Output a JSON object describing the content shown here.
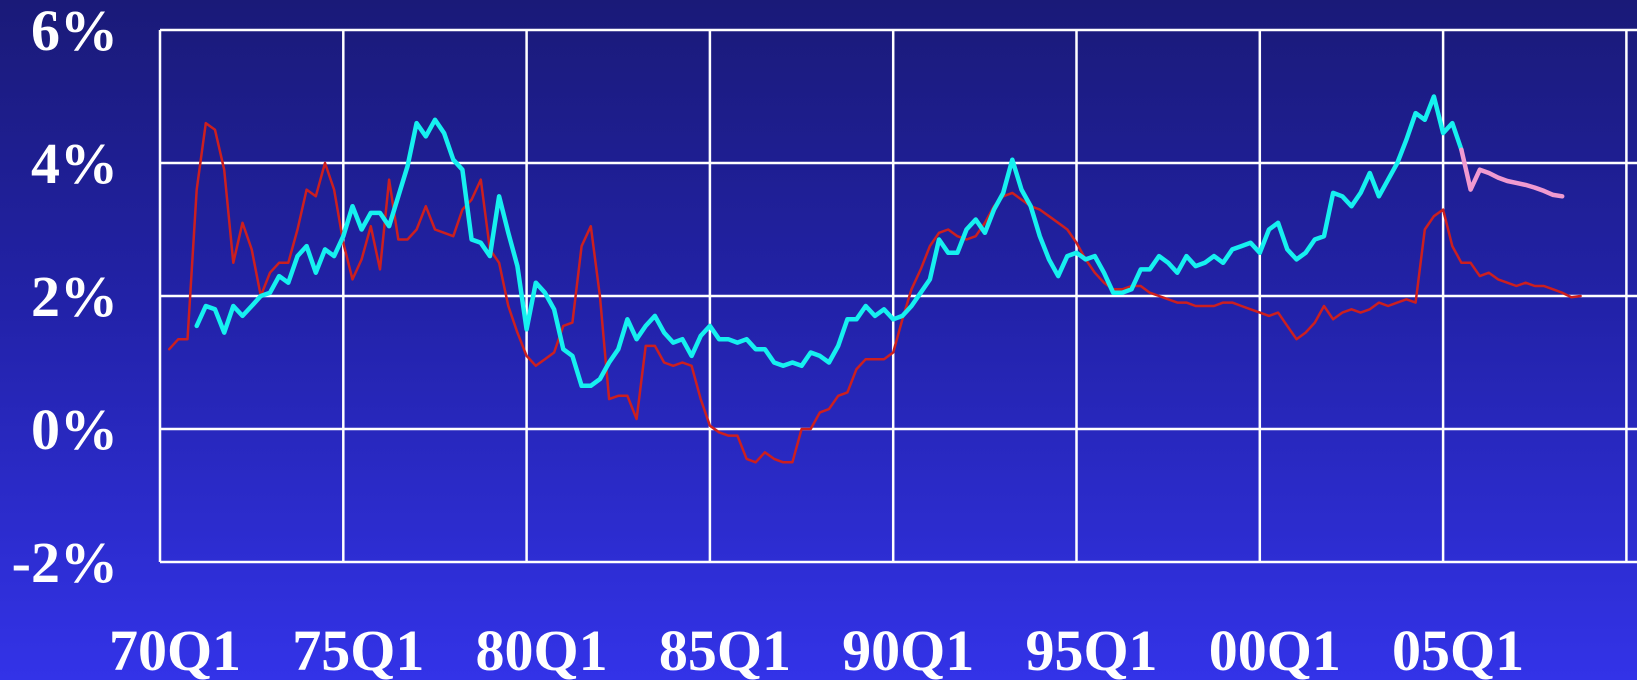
{
  "chart_data": {
    "type": "line",
    "title": "",
    "xlabel": "",
    "ylabel": "",
    "x_ticks": [
      "70Q1",
      "75Q1",
      "80Q1",
      "85Q1",
      "90Q1",
      "95Q1",
      "00Q1",
      "05Q1"
    ],
    "y_ticks": [
      "6%",
      "4%",
      "2%",
      "0%",
      "-2%"
    ],
    "xlim": [
      1970.0,
      2009.0
    ],
    "ylim": [
      -2,
      6
    ],
    "grid": true,
    "background_top": "#1a1a78",
    "background_bottom": "#3333e8",
    "grid_color": "#ffffff",
    "series": [
      {
        "color": "#cc1f1f",
        "style": "thin",
        "points": [
          [
            1970.25,
            1.2
          ],
          [
            1970.5,
            1.35
          ],
          [
            1970.75,
            1.35
          ],
          [
            1971.0,
            3.6
          ],
          [
            1971.25,
            4.6
          ],
          [
            1971.5,
            4.5
          ],
          [
            1971.75,
            3.9
          ],
          [
            1972.0,
            2.5
          ],
          [
            1972.25,
            3.1
          ],
          [
            1972.5,
            2.7
          ],
          [
            1972.75,
            2.0
          ],
          [
            1973.0,
            2.35
          ],
          [
            1973.25,
            2.5
          ],
          [
            1973.5,
            2.5
          ],
          [
            1973.75,
            3.0
          ],
          [
            1974.0,
            3.6
          ],
          [
            1974.25,
            3.5
          ],
          [
            1974.5,
            4.0
          ],
          [
            1974.75,
            3.6
          ],
          [
            1975.0,
            2.8
          ],
          [
            1975.25,
            2.25
          ],
          [
            1975.5,
            2.55
          ],
          [
            1975.75,
            3.05
          ],
          [
            1976.0,
            2.4
          ],
          [
            1976.25,
            3.75
          ],
          [
            1976.5,
            2.85
          ],
          [
            1976.75,
            2.85
          ],
          [
            1977.0,
            3.0
          ],
          [
            1977.25,
            3.35
          ],
          [
            1977.5,
            3.0
          ],
          [
            1977.75,
            2.95
          ],
          [
            1978.0,
            2.9
          ],
          [
            1978.25,
            3.3
          ],
          [
            1978.5,
            3.45
          ],
          [
            1978.75,
            3.75
          ],
          [
            1979.0,
            2.7
          ],
          [
            1979.25,
            2.5
          ],
          [
            1979.5,
            1.85
          ],
          [
            1979.75,
            1.45
          ],
          [
            1980.0,
            1.1
          ],
          [
            1980.25,
            0.95
          ],
          [
            1980.5,
            1.05
          ],
          [
            1980.75,
            1.15
          ],
          [
            1981.0,
            1.55
          ],
          [
            1981.25,
            1.6
          ],
          [
            1981.5,
            2.75
          ],
          [
            1981.75,
            3.05
          ],
          [
            1982.0,
            2.0
          ],
          [
            1982.25,
            0.45
          ],
          [
            1982.5,
            0.5
          ],
          [
            1982.75,
            0.5
          ],
          [
            1983.0,
            0.15
          ],
          [
            1983.25,
            1.25
          ],
          [
            1983.5,
            1.25
          ],
          [
            1983.75,
            1.0
          ],
          [
            1984.0,
            0.95
          ],
          [
            1984.25,
            1.0
          ],
          [
            1984.5,
            0.95
          ],
          [
            1984.75,
            0.45
          ],
          [
            1985.0,
            0.05
          ],
          [
            1985.25,
            -0.05
          ],
          [
            1985.5,
            -0.1
          ],
          [
            1985.75,
            -0.1
          ],
          [
            1986.0,
            -0.45
          ],
          [
            1986.25,
            -0.5
          ],
          [
            1986.5,
            -0.35
          ],
          [
            1986.75,
            -0.45
          ],
          [
            1987.0,
            -0.5
          ],
          [
            1987.25,
            -0.5
          ],
          [
            1987.5,
            0.0
          ],
          [
            1987.75,
            0.0
          ],
          [
            1988.0,
            0.25
          ],
          [
            1988.25,
            0.3
          ],
          [
            1988.5,
            0.5
          ],
          [
            1988.75,
            0.55
          ],
          [
            1989.0,
            0.9
          ],
          [
            1989.25,
            1.05
          ],
          [
            1989.5,
            1.05
          ],
          [
            1989.75,
            1.05
          ],
          [
            1990.0,
            1.15
          ],
          [
            1990.25,
            1.65
          ],
          [
            1990.5,
            2.1
          ],
          [
            1990.75,
            2.4
          ],
          [
            1991.0,
            2.75
          ],
          [
            1991.25,
            2.95
          ],
          [
            1991.5,
            3.0
          ],
          [
            1991.75,
            2.9
          ],
          [
            1992.0,
            2.85
          ],
          [
            1992.25,
            2.9
          ],
          [
            1992.5,
            3.1
          ],
          [
            1992.75,
            3.35
          ],
          [
            1993.0,
            3.5
          ],
          [
            1993.25,
            3.55
          ],
          [
            1993.5,
            3.45
          ],
          [
            1993.75,
            3.35
          ],
          [
            1994.0,
            3.3
          ],
          [
            1994.25,
            3.2
          ],
          [
            1994.5,
            3.1
          ],
          [
            1994.75,
            3.0
          ],
          [
            1995.0,
            2.8
          ],
          [
            1995.25,
            2.55
          ],
          [
            1995.5,
            2.35
          ],
          [
            1995.75,
            2.2
          ],
          [
            1996.0,
            2.1
          ],
          [
            1996.25,
            2.1
          ],
          [
            1996.5,
            2.15
          ],
          [
            1996.75,
            2.15
          ],
          [
            1997.0,
            2.05
          ],
          [
            1997.25,
            2.0
          ],
          [
            1997.5,
            1.95
          ],
          [
            1997.75,
            1.9
          ],
          [
            1998.0,
            1.9
          ],
          [
            1998.25,
            1.85
          ],
          [
            1998.5,
            1.85
          ],
          [
            1998.75,
            1.85
          ],
          [
            1999.0,
            1.9
          ],
          [
            1999.25,
            1.9
          ],
          [
            1999.5,
            1.85
          ],
          [
            1999.75,
            1.8
          ],
          [
            2000.0,
            1.75
          ],
          [
            2000.25,
            1.7
          ],
          [
            2000.5,
            1.75
          ],
          [
            2000.75,
            1.55
          ],
          [
            2001.0,
            1.35
          ],
          [
            2001.25,
            1.45
          ],
          [
            2001.5,
            1.6
          ],
          [
            2001.75,
            1.85
          ],
          [
            2002.0,
            1.65
          ],
          [
            2002.25,
            1.75
          ],
          [
            2002.5,
            1.8
          ],
          [
            2002.75,
            1.75
          ],
          [
            2003.0,
            1.8
          ],
          [
            2003.25,
            1.9
          ],
          [
            2003.5,
            1.85
          ],
          [
            2003.75,
            1.9
          ],
          [
            2004.0,
            1.95
          ],
          [
            2004.25,
            1.9
          ],
          [
            2004.5,
            3.0
          ],
          [
            2004.75,
            3.2
          ],
          [
            2005.0,
            3.3
          ],
          [
            2005.25,
            2.75
          ],
          [
            2005.5,
            2.5
          ],
          [
            2005.75,
            2.5
          ],
          [
            2006.0,
            2.3
          ],
          [
            2006.25,
            2.35
          ],
          [
            2006.5,
            2.25
          ],
          [
            2006.75,
            2.2
          ],
          [
            2007.0,
            2.15
          ],
          [
            2007.25,
            2.2
          ],
          [
            2007.5,
            2.15
          ],
          [
            2007.75,
            2.15
          ],
          [
            2008.0,
            2.1
          ],
          [
            2008.25,
            2.05
          ],
          [
            2008.5,
            1.98
          ],
          [
            2008.75,
            2.0
          ]
        ]
      },
      {
        "color": "#16f0f0",
        "style": "thick",
        "points": [
          [
            1971.0,
            1.55
          ],
          [
            1971.25,
            1.85
          ],
          [
            1971.5,
            1.8
          ],
          [
            1971.75,
            1.45
          ],
          [
            1972.0,
            1.85
          ],
          [
            1972.25,
            1.7
          ],
          [
            1972.5,
            1.85
          ],
          [
            1972.75,
            2.0
          ],
          [
            1973.0,
            2.05
          ],
          [
            1973.25,
            2.3
          ],
          [
            1973.5,
            2.2
          ],
          [
            1973.75,
            2.6
          ],
          [
            1974.0,
            2.75
          ],
          [
            1974.25,
            2.35
          ],
          [
            1974.5,
            2.7
          ],
          [
            1974.75,
            2.6
          ],
          [
            1975.0,
            2.9
          ],
          [
            1975.25,
            3.35
          ],
          [
            1975.5,
            3.0
          ],
          [
            1975.75,
            3.25
          ],
          [
            1976.0,
            3.25
          ],
          [
            1976.25,
            3.05
          ],
          [
            1976.5,
            3.5
          ],
          [
            1976.75,
            3.95
          ],
          [
            1977.0,
            4.6
          ],
          [
            1977.25,
            4.4
          ],
          [
            1977.5,
            4.65
          ],
          [
            1977.75,
            4.45
          ],
          [
            1978.0,
            4.05
          ],
          [
            1978.25,
            3.9
          ],
          [
            1978.5,
            2.85
          ],
          [
            1978.75,
            2.8
          ],
          [
            1979.0,
            2.6
          ],
          [
            1979.25,
            3.5
          ],
          [
            1979.5,
            2.95
          ],
          [
            1979.75,
            2.45
          ],
          [
            1980.0,
            1.5
          ],
          [
            1980.25,
            2.2
          ],
          [
            1980.5,
            2.05
          ],
          [
            1980.75,
            1.8
          ],
          [
            1981.0,
            1.2
          ],
          [
            1981.25,
            1.1
          ],
          [
            1981.5,
            0.65
          ],
          [
            1981.75,
            0.65
          ],
          [
            1982.0,
            0.75
          ],
          [
            1982.25,
            1.0
          ],
          [
            1982.5,
            1.2
          ],
          [
            1982.75,
            1.65
          ],
          [
            1983.0,
            1.35
          ],
          [
            1983.25,
            1.55
          ],
          [
            1983.5,
            1.7
          ],
          [
            1983.75,
            1.45
          ],
          [
            1984.0,
            1.3
          ],
          [
            1984.25,
            1.35
          ],
          [
            1984.5,
            1.1
          ],
          [
            1984.75,
            1.4
          ],
          [
            1985.0,
            1.55
          ],
          [
            1985.25,
            1.35
          ],
          [
            1985.5,
            1.35
          ],
          [
            1985.75,
            1.3
          ],
          [
            1986.0,
            1.35
          ],
          [
            1986.25,
            1.2
          ],
          [
            1986.5,
            1.2
          ],
          [
            1986.75,
            1.0
          ],
          [
            1987.0,
            0.95
          ],
          [
            1987.25,
            1.0
          ],
          [
            1987.5,
            0.95
          ],
          [
            1987.75,
            1.15
          ],
          [
            1988.0,
            1.1
          ],
          [
            1988.25,
            1.0
          ],
          [
            1988.5,
            1.25
          ],
          [
            1988.75,
            1.65
          ],
          [
            1989.0,
            1.65
          ],
          [
            1989.25,
            1.85
          ],
          [
            1989.5,
            1.7
          ],
          [
            1989.75,
            1.8
          ],
          [
            1990.0,
            1.65
          ],
          [
            1990.25,
            1.7
          ],
          [
            1990.5,
            1.85
          ],
          [
            1990.75,
            2.05
          ],
          [
            1991.0,
            2.25
          ],
          [
            1991.25,
            2.85
          ],
          [
            1991.5,
            2.65
          ],
          [
            1991.75,
            2.65
          ],
          [
            1992.0,
            3.0
          ],
          [
            1992.25,
            3.15
          ],
          [
            1992.5,
            2.95
          ],
          [
            1992.75,
            3.3
          ],
          [
            1993.0,
            3.55
          ],
          [
            1993.25,
            4.05
          ],
          [
            1993.5,
            3.6
          ],
          [
            1993.75,
            3.35
          ],
          [
            1994.0,
            2.9
          ],
          [
            1994.25,
            2.55
          ],
          [
            1994.5,
            2.3
          ],
          [
            1994.75,
            2.6
          ],
          [
            1995.0,
            2.65
          ],
          [
            1995.25,
            2.55
          ],
          [
            1995.5,
            2.6
          ],
          [
            1995.75,
            2.35
          ],
          [
            1996.0,
            2.05
          ],
          [
            1996.25,
            2.05
          ],
          [
            1996.5,
            2.1
          ],
          [
            1996.75,
            2.4
          ],
          [
            1997.0,
            2.4
          ],
          [
            1997.25,
            2.6
          ],
          [
            1997.5,
            2.5
          ],
          [
            1997.75,
            2.35
          ],
          [
            1998.0,
            2.6
          ],
          [
            1998.25,
            2.45
          ],
          [
            1998.5,
            2.5
          ],
          [
            1998.75,
            2.6
          ],
          [
            1999.0,
            2.5
          ],
          [
            1999.25,
            2.7
          ],
          [
            1999.5,
            2.75
          ],
          [
            1999.75,
            2.8
          ],
          [
            2000.0,
            2.65
          ],
          [
            2000.25,
            3.0
          ],
          [
            2000.5,
            3.1
          ],
          [
            2000.75,
            2.7
          ],
          [
            2001.0,
            2.55
          ],
          [
            2001.25,
            2.65
          ],
          [
            2001.5,
            2.85
          ],
          [
            2001.75,
            2.9
          ],
          [
            2002.0,
            3.55
          ],
          [
            2002.25,
            3.5
          ],
          [
            2002.5,
            3.35
          ],
          [
            2002.75,
            3.55
          ],
          [
            2003.0,
            3.85
          ],
          [
            2003.25,
            3.5
          ],
          [
            2003.75,
            4.0
          ],
          [
            2004.0,
            4.35
          ],
          [
            2004.25,
            4.75
          ],
          [
            2004.5,
            4.65
          ],
          [
            2004.75,
            5.0
          ],
          [
            2005.0,
            4.45
          ],
          [
            2005.25,
            4.6
          ],
          [
            2005.5,
            4.2
          ]
        ]
      },
      {
        "color": "#f09ad0",
        "style": "thick",
        "points": [
          [
            2005.5,
            4.2
          ],
          [
            2005.75,
            3.6
          ],
          [
            2006.0,
            3.9
          ],
          [
            2006.25,
            3.85
          ],
          [
            2006.5,
            3.78
          ],
          [
            2006.75,
            3.73
          ],
          [
            2007.0,
            3.7
          ],
          [
            2007.25,
            3.67
          ],
          [
            2007.5,
            3.63
          ],
          [
            2007.75,
            3.58
          ],
          [
            2008.0,
            3.52
          ],
          [
            2008.25,
            3.5
          ]
        ]
      }
    ]
  }
}
